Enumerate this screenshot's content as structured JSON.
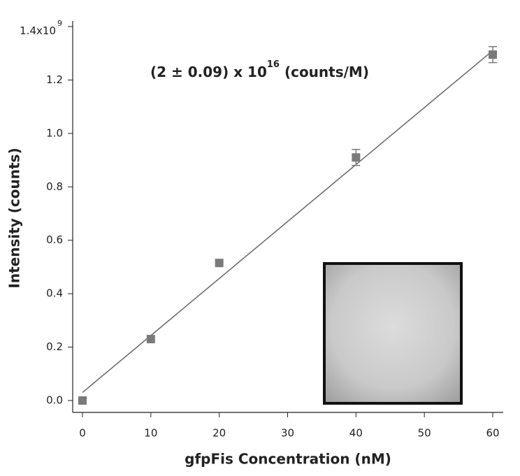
{
  "chart_data": {
    "type": "scatter",
    "xlabel": "gfpFis Concentration (nM)",
    "ylabel": "Intensity (counts)",
    "annotation": {
      "text": "(2 ± 0.09) x 10",
      "superscript": "16",
      "suffix": " (counts/M)"
    },
    "x": [
      0,
      10,
      20,
      40,
      60
    ],
    "values": [
      0,
      0.23,
      0.515,
      0.91,
      1.295
    ],
    "errors": [
      0,
      0,
      0,
      0.03,
      0.03
    ],
    "color": "#7a7a7a",
    "fit": {
      "x": [
        0,
        60
      ],
      "values": [
        0.03,
        1.31
      ],
      "color": "#666666"
    },
    "xlim": [
      0,
      60
    ],
    "xticks": [
      0,
      10,
      20,
      30,
      40,
      50,
      60
    ],
    "ylim": [
      0,
      1.4
    ],
    "yticks": [
      {
        "value": 0,
        "label": "0.0"
      },
      {
        "value": 0.2,
        "label": "0.2"
      },
      {
        "value": 0.4,
        "label": "0.4"
      },
      {
        "value": 0.6,
        "label": "0.6"
      },
      {
        "value": 0.8,
        "label": "0.8"
      },
      {
        "value": 1,
        "label": "1.0"
      },
      {
        "value": 1.2,
        "label": "1.2"
      },
      {
        "value": 1.4,
        "label": "1.4x10"
      }
    ],
    "yticks_exponent": "9"
  }
}
